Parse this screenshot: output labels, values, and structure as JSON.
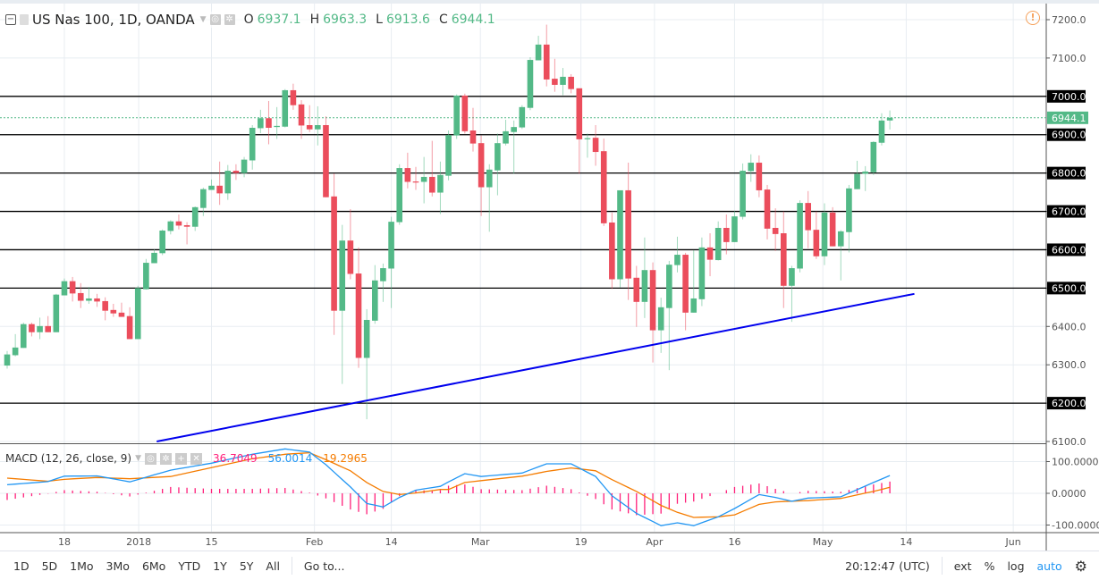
{
  "header": {
    "symbol": "US Nas 100, 1D, OANDA",
    "open_label": "O",
    "open": "6937.1",
    "high_label": "H",
    "high": "6963.3",
    "low_label": "L",
    "low": "6913.6",
    "close_label": "C",
    "close": "6944.1"
  },
  "macd_legend": {
    "title": "MACD (12, 26, close, 9)",
    "histogram": "36.7049",
    "macd": "56.0014",
    "signal": "19.2965"
  },
  "colors": {
    "up": "#53b987",
    "down": "#eb4d5c",
    "macd": "#2196f3",
    "signal": "#f57c00",
    "histogram": "#ff1f7a",
    "trendline": "#0000ee",
    "last_price": "#53b987"
  },
  "toolbar": {
    "ranges": [
      "1D",
      "5D",
      "1Mo",
      "3Mo",
      "6Mo",
      "YTD",
      "1Y",
      "5Y",
      "All"
    ],
    "goto": "Go to...",
    "clock": "20:12:47 (UTC)",
    "ext": "ext",
    "percent": "%",
    "log": "log",
    "auto": "auto",
    "settings_icon": "gear-icon"
  },
  "warning_icon": "exclamation-circle-icon",
  "chart_data": {
    "type": "candlestick",
    "price_axis": {
      "ticks": [
        "7200.0",
        "7100.0",
        "7000.0",
        "6900.0",
        "6800.0",
        "6700.0",
        "6600.0",
        "6500.0",
        "6400.0",
        "6300.0",
        "6200.0",
        "6100.0"
      ],
      "range": [
        6100,
        7200
      ]
    },
    "last_price": "6944.1",
    "horizontal_lines": [
      7000,
      6900,
      6800,
      6700,
      6600,
      6500,
      6200
    ],
    "trendline": {
      "from": {
        "bar": 19.3,
        "price": 6100
      },
      "to": {
        "bar": 112,
        "price": 6485
      }
    },
    "x_labels": [
      {
        "bar": 8,
        "label": "18"
      },
      {
        "bar": 17.1,
        "label": "2018"
      },
      {
        "bar": 26,
        "label": "15"
      },
      {
        "bar": 38.6,
        "label": "Feb"
      },
      {
        "bar": 48,
        "label": "14"
      },
      {
        "bar": 58.9,
        "label": "Mar"
      },
      {
        "bar": 71.2,
        "label": "19"
      },
      {
        "bar": 80.2,
        "label": "Apr"
      },
      {
        "bar": 90,
        "label": "16"
      },
      {
        "bar": 100.8,
        "label": "May"
      },
      {
        "bar": 111,
        "label": "14"
      },
      {
        "bar": 124.1,
        "label": "Jun"
      }
    ],
    "ohlc": [
      [
        6298,
        6336,
        6290,
        6327
      ],
      [
        6325,
        6380,
        6322,
        6345
      ],
      [
        6344,
        6410,
        6344,
        6406
      ],
      [
        6406,
        6410,
        6374,
        6385
      ],
      [
        6385,
        6423,
        6367,
        6401
      ],
      [
        6401,
        6427,
        6385,
        6385
      ],
      [
        6385,
        6485,
        6385,
        6483
      ],
      [
        6481,
        6525,
        6481,
        6518
      ],
      [
        6518,
        6529,
        6465,
        6486
      ],
      [
        6487,
        6513,
        6448,
        6467
      ],
      [
        6467,
        6503,
        6459,
        6473
      ],
      [
        6473,
        6485,
        6451,
        6465
      ],
      [
        6466,
        6476,
        6416,
        6441
      ],
      [
        6443,
        6459,
        6425,
        6434
      ],
      [
        6436,
        6462,
        6425,
        6425
      ],
      [
        6427,
        6450,
        6367,
        6367
      ],
      [
        6367,
        6506,
        6367,
        6500
      ],
      [
        6497,
        6576,
        6496,
        6566
      ],
      [
        6565,
        6601,
        6565,
        6592
      ],
      [
        6591,
        6653,
        6586,
        6650
      ],
      [
        6649,
        6677,
        6640,
        6674
      ],
      [
        6674,
        6692,
        6653,
        6663
      ],
      [
        6664,
        6672,
        6614,
        6660
      ],
      [
        6660,
        6713,
        6649,
        6711
      ],
      [
        6709,
        6762,
        6688,
        6758
      ],
      [
        6756,
        6783,
        6756,
        6767
      ],
      [
        6767,
        6830,
        6717,
        6747
      ],
      [
        6747,
        6821,
        6730,
        6806
      ],
      [
        6806,
        6823,
        6782,
        6800
      ],
      [
        6800,
        6842,
        6789,
        6835
      ],
      [
        6833,
        6925,
        6809,
        6918
      ],
      [
        6917,
        6965,
        6904,
        6943
      ],
      [
        6943,
        6988,
        6875,
        6918
      ],
      [
        6920,
        6972,
        6889,
        6923
      ],
      [
        6921,
        7019,
        6919,
        7016
      ],
      [
        7016,
        7033,
        6965,
        6977
      ],
      [
        6979,
        6990,
        6889,
        6924
      ],
      [
        6925,
        6977,
        6907,
        6914
      ],
      [
        6914,
        6974,
        6872,
        6925
      ],
      [
        6925,
        6948,
        6737,
        6737
      ],
      [
        6739,
        6799,
        6378,
        6441
      ],
      [
        6441,
        6665,
        6250,
        6624
      ],
      [
        6624,
        6706,
        6523,
        6537
      ],
      [
        6538,
        6606,
        6292,
        6318
      ],
      [
        6318,
        6445,
        6158,
        6417
      ],
      [
        6415,
        6560,
        6407,
        6520
      ],
      [
        6518,
        6564,
        6464,
        6552
      ],
      [
        6551,
        6686,
        6448,
        6673
      ],
      [
        6672,
        6823,
        6665,
        6813
      ],
      [
        6813,
        6853,
        6760,
        6777
      ],
      [
        6778,
        6816,
        6756,
        6776
      ],
      [
        6777,
        6842,
        6721,
        6790
      ],
      [
        6790,
        6884,
        6739,
        6749
      ],
      [
        6749,
        6830,
        6693,
        6795
      ],
      [
        6793,
        6911,
        6781,
        6899
      ],
      [
        6898,
        7005,
        6889,
        7002
      ],
      [
        7002,
        7007,
        6903,
        6909
      ],
      [
        6911,
        6970,
        6856,
        6877
      ],
      [
        6878,
        6898,
        6688,
        6763
      ],
      [
        6763,
        6823,
        6647,
        6809
      ],
      [
        6807,
        6903,
        6742,
        6878
      ],
      [
        6877,
        6939,
        6872,
        6909
      ],
      [
        6907,
        6937,
        6798,
        6920
      ],
      [
        6919,
        6977,
        6915,
        6972
      ],
      [
        6970,
        7102,
        6964,
        7095
      ],
      [
        7094,
        7158,
        7094,
        7135
      ],
      [
        7135,
        7187,
        7026,
        7044
      ],
      [
        7046,
        7098,
        7012,
        7030
      ],
      [
        7030,
        7074,
        7003,
        7051
      ],
      [
        7051,
        7058,
        7008,
        7019
      ],
      [
        7021,
        7021,
        6798,
        6888
      ],
      [
        6889,
        6903,
        6840,
        6891
      ],
      [
        6892,
        6925,
        6819,
        6855
      ],
      [
        6857,
        6890,
        6662,
        6669
      ],
      [
        6671,
        6697,
        6498,
        6523
      ],
      [
        6523,
        6755,
        6502,
        6755
      ],
      [
        6755,
        6827,
        6469,
        6525
      ],
      [
        6527,
        6558,
        6399,
        6464
      ],
      [
        6464,
        6632,
        6422,
        6547
      ],
      [
        6547,
        6567,
        6306,
        6390
      ],
      [
        6390,
        6475,
        6331,
        6450
      ],
      [
        6448,
        6571,
        6286,
        6561
      ],
      [
        6560,
        6634,
        6541,
        6587
      ],
      [
        6587,
        6592,
        6390,
        6436
      ],
      [
        6436,
        6599,
        6436,
        6473
      ],
      [
        6471,
        6632,
        6453,
        6606
      ],
      [
        6606,
        6643,
        6531,
        6574
      ],
      [
        6573,
        6674,
        6572,
        6657
      ],
      [
        6657,
        6692,
        6588,
        6620
      ],
      [
        6620,
        6701,
        6620,
        6687
      ],
      [
        6686,
        6825,
        6679,
        6806
      ],
      [
        6805,
        6849,
        6777,
        6827
      ],
      [
        6827,
        6846,
        6737,
        6755
      ],
      [
        6757,
        6769,
        6627,
        6655
      ],
      [
        6657,
        6708,
        6597,
        6641
      ],
      [
        6643,
        6700,
        6448,
        6506
      ],
      [
        6506,
        6558,
        6412,
        6552
      ],
      [
        6551,
        6729,
        6541,
        6722
      ],
      [
        6722,
        6753,
        6604,
        6651
      ],
      [
        6652,
        6700,
        6576,
        6583
      ],
      [
        6583,
        6721,
        6560,
        6697
      ],
      [
        6697,
        6711,
        6609,
        6609
      ],
      [
        6609,
        6651,
        6520,
        6648
      ],
      [
        6646,
        6769,
        6593,
        6760
      ],
      [
        6758,
        6832,
        6758,
        6798
      ],
      [
        6798,
        6818,
        6753,
        6804
      ],
      [
        6802,
        6883,
        6795,
        6881
      ],
      [
        6879,
        6956,
        6872,
        6937
      ],
      [
        6937.1,
        6963.3,
        6913.6,
        6944.1
      ]
    ],
    "macd_pane": {
      "ticks": [
        "100.0000",
        "0.0000",
        "-100.0000"
      ],
      "range": [
        -115,
        120
      ],
      "points": [
        {
          "bar": 1,
          "macd": 27,
          "signal": 48
        },
        {
          "bar": 6,
          "macd": 37,
          "signal": 38
        },
        {
          "bar": 8,
          "macd": 54,
          "signal": 44
        },
        {
          "bar": 12,
          "macd": 55,
          "signal": 50
        },
        {
          "bar": 16,
          "macd": 36,
          "signal": 46
        },
        {
          "bar": 21,
          "macd": 73,
          "signal": 53
        },
        {
          "bar": 26,
          "macd": 95,
          "signal": 81
        },
        {
          "bar": 31,
          "macd": 123,
          "signal": 109
        },
        {
          "bar": 35,
          "macd": 140,
          "signal": 123
        },
        {
          "bar": 38,
          "macd": 130,
          "signal": 128
        },
        {
          "bar": 40,
          "macd": 90,
          "signal": 106
        },
        {
          "bar": 43,
          "macd": 20,
          "signal": 71
        },
        {
          "bar": 45,
          "macd": -32,
          "signal": 34
        },
        {
          "bar": 47,
          "macd": -43,
          "signal": 6
        },
        {
          "bar": 49,
          "macd": -13,
          "signal": -4
        },
        {
          "bar": 51,
          "macd": 10,
          "signal": 1
        },
        {
          "bar": 54,
          "macd": 22,
          "signal": 12
        },
        {
          "bar": 55,
          "macd": 36,
          "signal": 12
        },
        {
          "bar": 57,
          "macd": 62,
          "signal": 34
        },
        {
          "bar": 59,
          "macd": 53,
          "signal": 40
        },
        {
          "bar": 64,
          "macd": 64,
          "signal": 54
        },
        {
          "bar": 67,
          "macd": 93,
          "signal": 69
        },
        {
          "bar": 70,
          "macd": 93,
          "signal": 80
        },
        {
          "bar": 73,
          "macd": 53,
          "signal": 71
        },
        {
          "bar": 75,
          "macd": -8,
          "signal": 43
        },
        {
          "bar": 78,
          "macd": -63,
          "signal": 6
        },
        {
          "bar": 81,
          "macd": -102,
          "signal": -38
        },
        {
          "bar": 83,
          "macd": -93,
          "signal": -60
        },
        {
          "bar": 85,
          "macd": -102,
          "signal": -76
        },
        {
          "bar": 88,
          "macd": -74,
          "signal": -74
        },
        {
          "bar": 90,
          "macd": -48,
          "signal": -68
        },
        {
          "bar": 93,
          "macd": -4,
          "signal": -35
        },
        {
          "bar": 95,
          "macd": -13,
          "signal": -27
        },
        {
          "bar": 97,
          "macd": -25,
          "signal": -25
        },
        {
          "bar": 99,
          "macd": -15,
          "signal": -23
        },
        {
          "bar": 103,
          "macd": -11,
          "signal": -16
        },
        {
          "bar": 107,
          "macd": 34,
          "signal": 6
        },
        {
          "bar": 109,
          "macd": 56,
          "signal": 19
        }
      ]
    }
  }
}
